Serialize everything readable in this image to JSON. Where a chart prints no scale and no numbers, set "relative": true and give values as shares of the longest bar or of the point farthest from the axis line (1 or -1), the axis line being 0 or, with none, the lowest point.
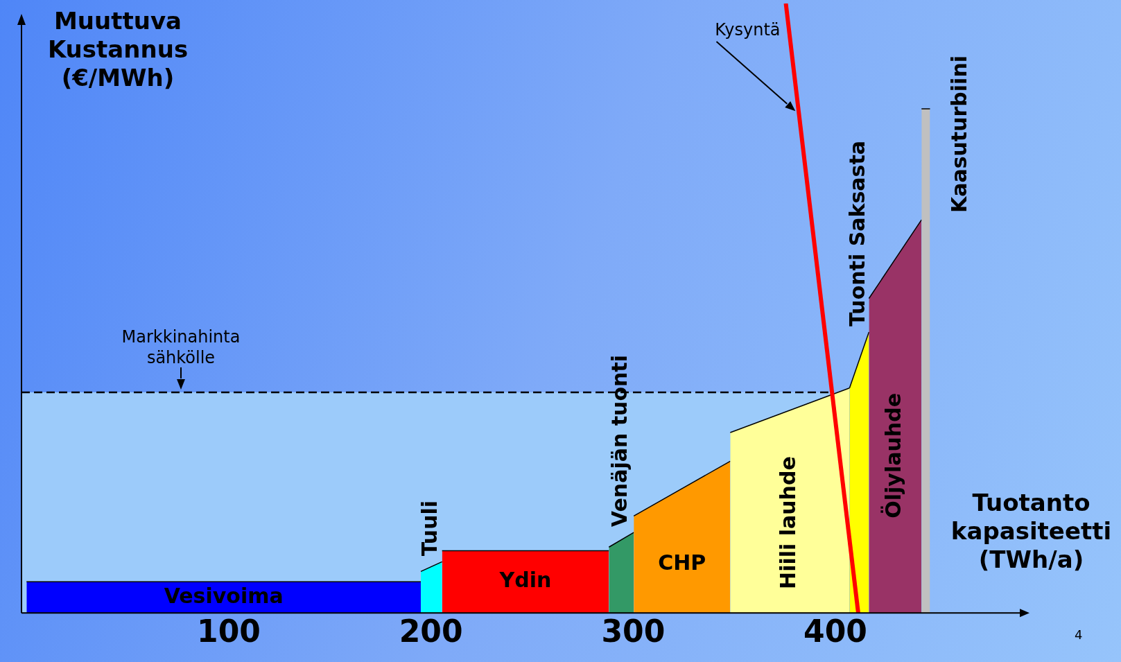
{
  "chart_data": {
    "type": "area",
    "xlabel": "Tuotanto kapasiteetti (TWh/a)",
    "ylabel": "Muuttuva Kustannus (€/MWh)",
    "relative": true,
    "xlim": [
      -2.5,
      496
    ],
    "xticks": [
      100,
      200,
      300,
      400
    ],
    "tick_labels": "x",
    "grid": false,
    "legend": false,
    "series": [
      {
        "name": "Vesivoima",
        "color": "#0000ff",
        "x": [
          0,
          195
        ],
        "values": [
          0.051,
          0.051
        ]
      },
      {
        "name": "Tuuli",
        "color": "#00ffff",
        "x": [
          195,
          205.5
        ],
        "values": [
          0.068,
          0.084
        ]
      },
      {
        "name": "Ydin",
        "color": "#ff0000",
        "x": [
          205.5,
          288
        ],
        "values": [
          0.102,
          0.102
        ]
      },
      {
        "name": "Venäjän tuonti",
        "color": "#339966",
        "x": [
          288,
          300.3
        ],
        "values": [
          0.108,
          0.132
        ]
      },
      {
        "name": "CHP",
        "color": "#ff9900",
        "x": [
          300.3,
          348
        ],
        "values": [
          0.159,
          0.249
        ]
      },
      {
        "name": "Hiili lauhde",
        "color": "#ffff99",
        "x": [
          348,
          407
        ],
        "values": [
          0.296,
          0.369
        ]
      },
      {
        "name": "Tuonti Saksasta",
        "color": "#ffff00",
        "x": [
          407,
          416.6
        ],
        "values": [
          0.369,
          0.461
        ]
      },
      {
        "name": "Öljylauhde",
        "color": "#993366",
        "x": [
          416.6,
          442.6
        ],
        "values": [
          0.516,
          0.645
        ]
      },
      {
        "name": "Kaasuturbiini",
        "color": "#c0c0c0",
        "x": [
          442.6,
          446.8
        ],
        "values": [
          0.827,
          0.827
        ]
      },
      {
        "name": "Kysyntä",
        "type": "line",
        "color": "#ff0000",
        "x": [
          375.5,
          411.3
        ],
        "values": [
          1,
          0
        ]
      }
    ],
    "bands": [
      {
        "axis": "y",
        "from": 0,
        "to": 0.362,
        "color": "#9ccbfa"
      }
    ],
    "ref_lines": [
      {
        "axis": "y",
        "value": 0.362,
        "label": "Markkinahinta sähkölle",
        "line_style": "dashed"
      }
    ],
    "annotations": [
      "4"
    ]
  }
}
